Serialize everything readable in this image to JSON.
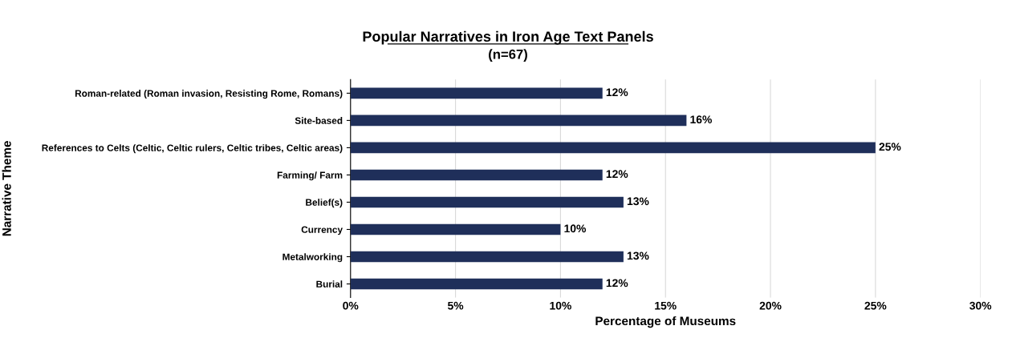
{
  "chart_data": {
    "type": "bar",
    "orientation": "horizontal",
    "title": "Popular Narratives in Iron Age Text Panels",
    "subtitle": "(n=67)",
    "xlabel": "Percentage of Museums",
    "ylabel": "Narrative Theme",
    "categories": [
      "Roman-related (Roman invasion, Resisting Rome, Romans)",
      "Site-based",
      "References to Celts (Celtic, Celtic rulers, Celtic tribes, Celtic areas)",
      "Farming/ Farm",
      "Belief(s)",
      "Currency",
      "Metalworking",
      "Burial"
    ],
    "values": [
      12,
      16,
      25,
      12,
      13,
      10,
      13,
      12
    ],
    "value_labels": [
      "12%",
      "16%",
      "25%",
      "12%",
      "13%",
      "10%",
      "13%",
      "12%"
    ],
    "color": "#1f2f5a",
    "xlim": [
      0,
      30
    ],
    "xticks": [
      {
        "value": 0,
        "label": "0%"
      },
      {
        "value": 5,
        "label": "5%"
      },
      {
        "value": 10,
        "label": "10%"
      },
      {
        "value": 15,
        "label": "15%"
      },
      {
        "value": 20,
        "label": "20%"
      },
      {
        "value": 25,
        "label": "25%"
      },
      {
        "value": 30,
        "label": "30%"
      }
    ],
    "grid": "x"
  }
}
